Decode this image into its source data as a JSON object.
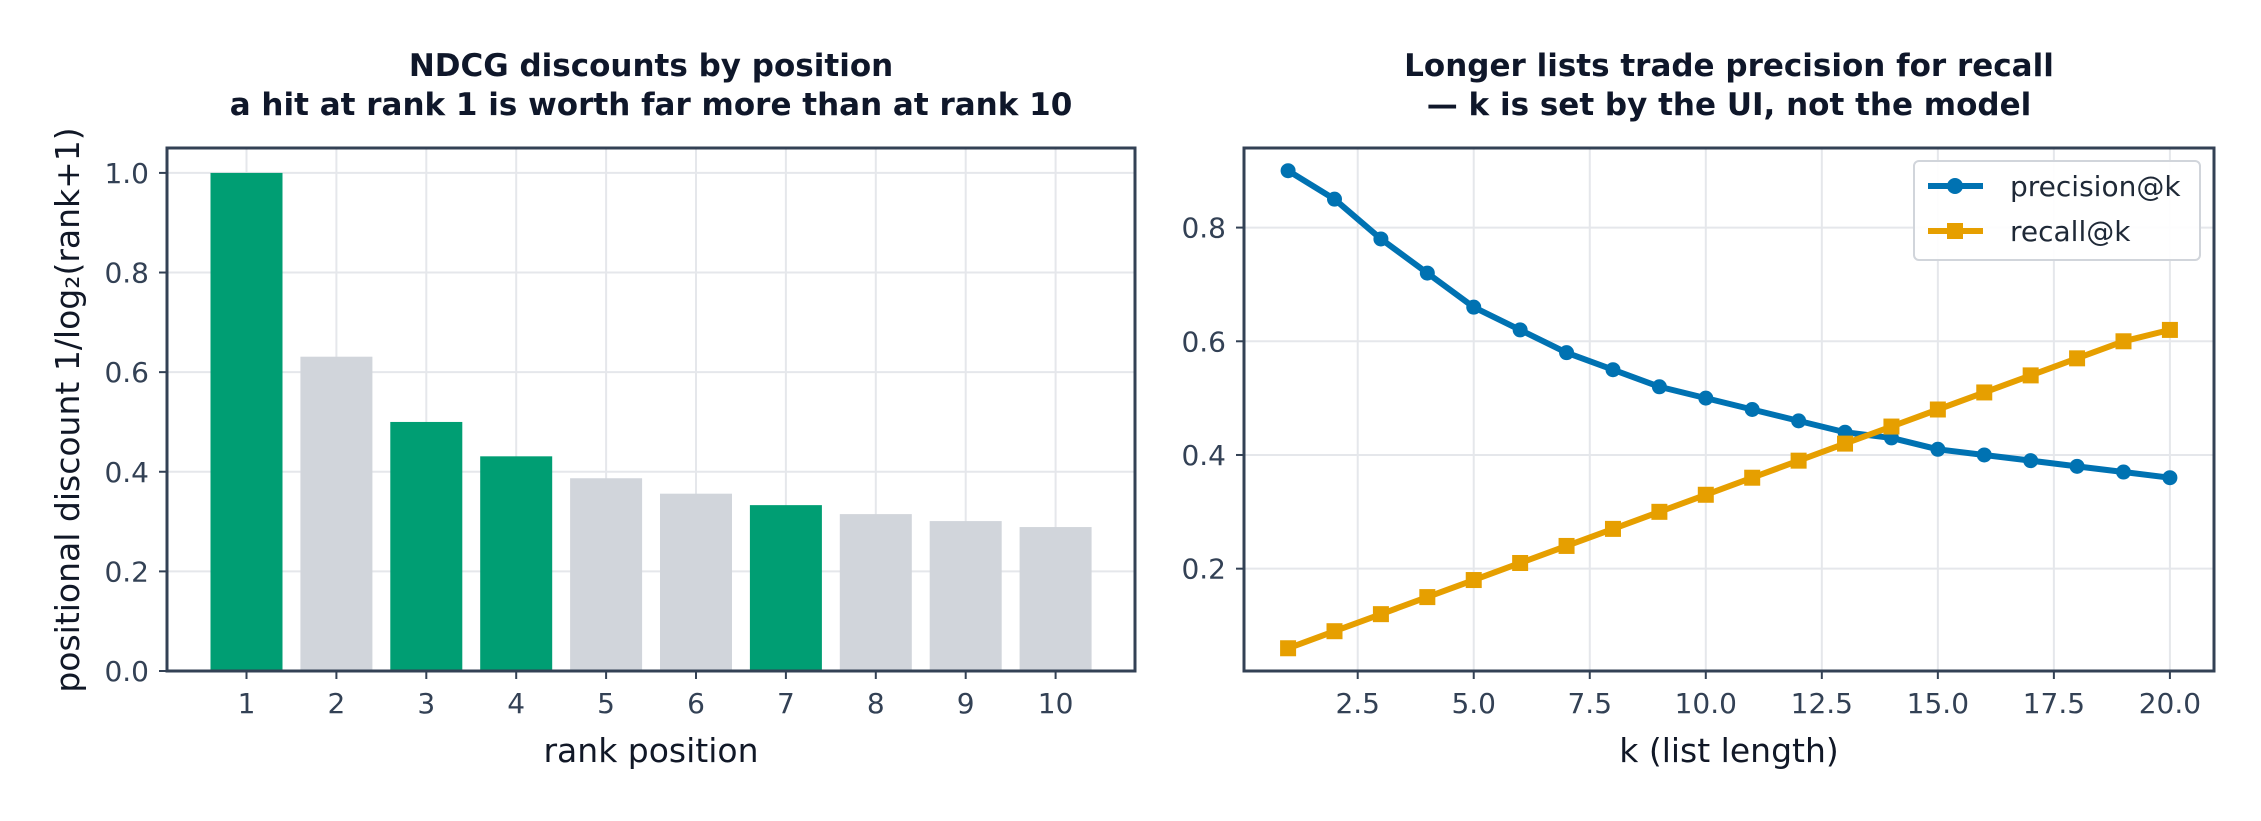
{
  "chart_data": [
    {
      "type": "bar",
      "title": "NDCG discounts by position",
      "subtitle": "a hit at rank 1 is worth far more than at rank 10",
      "xlabel": "rank position",
      "ylabel": "positional discount  1/log₂(rank+1)",
      "categories": [
        "1",
        "2",
        "3",
        "4",
        "5",
        "6",
        "7",
        "8",
        "9",
        "10"
      ],
      "values": [
        1.0,
        0.631,
        0.5,
        0.431,
        0.387,
        0.356,
        0.333,
        0.315,
        0.301,
        0.289
      ],
      "relevant": [
        true,
        false,
        true,
        true,
        false,
        false,
        true,
        false,
        false,
        false
      ],
      "ylim": [
        0,
        1.05
      ],
      "yticks": [
        0.0,
        0.2,
        0.4,
        0.6,
        0.8,
        1.0
      ],
      "ytick_labels": [
        "0.0",
        "0.2",
        "0.4",
        "0.6",
        "0.8",
        "1.0"
      ],
      "grid": true,
      "colors": {
        "relevant": "#009e73",
        "other": "#d1d5db"
      }
    },
    {
      "type": "line",
      "title": "Longer lists trade precision for recall",
      "subtitle": "— k is set by the UI, not the model",
      "xlabel": "k (list length)",
      "ylabel": "",
      "x": [
        1,
        2,
        3,
        4,
        5,
        6,
        7,
        8,
        9,
        10,
        11,
        12,
        13,
        14,
        15,
        16,
        17,
        18,
        19,
        20
      ],
      "series": [
        {
          "name": "precision@k",
          "marker": "circle",
          "color": "#0072b2",
          "values": [
            0.9,
            0.85,
            0.78,
            0.72,
            0.66,
            0.62,
            0.58,
            0.55,
            0.52,
            0.5,
            0.48,
            0.46,
            0.44,
            0.43,
            0.41,
            0.4,
            0.39,
            0.38,
            0.37,
            0.36
          ]
        },
        {
          "name": "recall@k",
          "marker": "square",
          "color": "#e69f00",
          "values": [
            0.06,
            0.09,
            0.12,
            0.15,
            0.18,
            0.21,
            0.24,
            0.27,
            0.3,
            0.33,
            0.36,
            0.39,
            0.42,
            0.45,
            0.48,
            0.51,
            0.54,
            0.57,
            0.6,
            0.62
          ]
        }
      ],
      "xlim": [
        0.05,
        20.95
      ],
      "ylim": [
        0.02,
        0.94
      ],
      "xticks": [
        2.5,
        5.0,
        7.5,
        10.0,
        12.5,
        15.0,
        17.5,
        20.0
      ],
      "xtick_labels": [
        "2.5",
        "5.0",
        "7.5",
        "10.0",
        "12.5",
        "15.0",
        "17.5",
        "20.0"
      ],
      "yticks": [
        0.2,
        0.4,
        0.6,
        0.8
      ],
      "ytick_labels": [
        "0.2",
        "0.4",
        "0.6",
        "0.8"
      ],
      "grid": true,
      "legend_position": "top-right"
    }
  ]
}
